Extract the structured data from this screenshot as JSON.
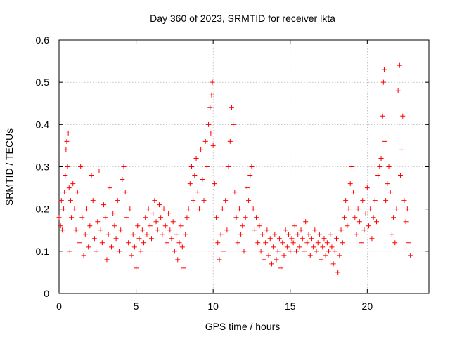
{
  "chart_data": {
    "type": "scatter",
    "title": "Day 360 of 2023, SRMTID for receiver lkta",
    "xlabel": "GPS time / hours",
    "ylabel": "SRMTID / TECUs",
    "xlim": [
      0,
      24
    ],
    "ylim": [
      0,
      0.6
    ],
    "xticks": [
      0,
      5,
      10,
      15,
      20
    ],
    "xtick_labels": [
      "0",
      "5",
      "10",
      "15",
      "20"
    ],
    "yticks": [
      0,
      0.1,
      0.2,
      0.3,
      0.4,
      0.5,
      0.6
    ],
    "ytick_labels": [
      "0",
      "0.1",
      "0.2",
      "0.3",
      "0.4",
      "0.5",
      "0.6"
    ],
    "grid": true,
    "marker": "+",
    "color": "#ff0000",
    "series": [
      {
        "name": "SRMTID",
        "x": [
          0.0,
          0.1,
          0.15,
          0.2,
          0.3,
          0.35,
          0.4,
          0.45,
          0.5,
          0.55,
          0.6,
          0.65,
          0.7,
          0.75,
          0.8,
          0.9,
          1.0,
          1.1,
          1.2,
          1.3,
          1.4,
          1.5,
          1.6,
          1.7,
          1.8,
          1.9,
          2.0,
          2.1,
          2.2,
          2.3,
          2.4,
          2.5,
          2.6,
          2.7,
          2.8,
          2.9,
          3.0,
          3.1,
          3.2,
          3.3,
          3.4,
          3.5,
          3.6,
          3.7,
          3.8,
          3.9,
          4.0,
          4.1,
          4.2,
          4.3,
          4.4,
          4.5,
          4.6,
          4.7,
          4.8,
          4.9,
          5.0,
          5.1,
          5.2,
          5.3,
          5.4,
          5.5,
          5.6,
          5.7,
          5.8,
          5.9,
          6.0,
          6.1,
          6.2,
          6.3,
          6.4,
          6.5,
          6.6,
          6.7,
          6.8,
          6.9,
          7.0,
          7.1,
          7.2,
          7.3,
          7.4,
          7.5,
          7.6,
          7.7,
          7.8,
          7.9,
          8.0,
          8.1,
          8.2,
          8.3,
          8.4,
          8.5,
          8.6,
          8.7,
          8.8,
          8.9,
          9.0,
          9.1,
          9.2,
          9.3,
          9.4,
          9.5,
          9.6,
          9.7,
          9.8,
          9.85,
          9.9,
          9.95,
          10.0,
          10.1,
          10.2,
          10.3,
          10.4,
          10.5,
          10.6,
          10.7,
          10.8,
          10.9,
          11.0,
          11.1,
          11.2,
          11.3,
          11.4,
          11.5,
          11.6,
          11.7,
          11.8,
          11.9,
          12.0,
          12.1,
          12.2,
          12.3,
          12.4,
          12.5,
          12.6,
          12.7,
          12.8,
          12.9,
          13.0,
          13.1,
          13.2,
          13.3,
          13.4,
          13.5,
          13.6,
          13.7,
          13.8,
          13.9,
          14.0,
          14.1,
          14.2,
          14.3,
          14.4,
          14.5,
          14.6,
          14.7,
          14.8,
          14.9,
          15.0,
          15.1,
          15.2,
          15.3,
          15.4,
          15.5,
          15.6,
          15.7,
          15.8,
          15.9,
          16.0,
          16.1,
          16.2,
          16.3,
          16.4,
          16.5,
          16.6,
          16.7,
          16.8,
          16.9,
          17.0,
          17.1,
          17.2,
          17.3,
          17.4,
          17.5,
          17.6,
          17.7,
          17.8,
          17.9,
          18.0,
          18.1,
          18.2,
          18.3,
          18.4,
          18.5,
          18.6,
          18.7,
          18.8,
          18.9,
          19.0,
          19.1,
          19.2,
          19.3,
          19.4,
          19.5,
          19.6,
          19.7,
          19.8,
          19.9,
          20.0,
          20.1,
          20.2,
          20.3,
          20.4,
          20.5,
          20.6,
          20.7,
          20.8,
          20.9,
          21.0,
          21.05,
          21.1,
          21.15,
          21.2,
          21.3,
          21.4,
          21.5,
          21.6,
          21.7,
          21.8,
          21.9,
          22.0,
          22.1,
          22.15,
          22.2,
          22.3,
          22.4,
          22.5,
          22.6,
          22.7,
          22.8
        ],
        "y": [
          0.18,
          0.16,
          0.22,
          0.15,
          0.2,
          0.24,
          0.28,
          0.34,
          0.36,
          0.3,
          0.38,
          0.25,
          0.1,
          0.22,
          0.18,
          0.26,
          0.2,
          0.15,
          0.24,
          0.12,
          0.3,
          0.18,
          0.09,
          0.14,
          0.2,
          0.11,
          0.16,
          0.28,
          0.22,
          0.13,
          0.1,
          0.17,
          0.29,
          0.15,
          0.12,
          0.21,
          0.18,
          0.08,
          0.14,
          0.25,
          0.11,
          0.19,
          0.16,
          0.13,
          0.22,
          0.1,
          0.15,
          0.27,
          0.3,
          0.24,
          0.18,
          0.12,
          0.2,
          0.09,
          0.14,
          0.11,
          0.06,
          0.16,
          0.13,
          0.1,
          0.15,
          0.12,
          0.18,
          0.14,
          0.2,
          0.16,
          0.13,
          0.19,
          0.22,
          0.17,
          0.15,
          0.21,
          0.18,
          0.14,
          0.2,
          0.16,
          0.12,
          0.19,
          0.15,
          0.13,
          0.17,
          0.1,
          0.14,
          0.08,
          0.12,
          0.16,
          0.11,
          0.06,
          0.14,
          0.18,
          0.2,
          0.26,
          0.3,
          0.22,
          0.28,
          0.32,
          0.24,
          0.2,
          0.34,
          0.27,
          0.22,
          0.36,
          0.3,
          0.4,
          0.44,
          0.38,
          0.47,
          0.5,
          0.35,
          0.26,
          0.18,
          0.12,
          0.08,
          0.14,
          0.2,
          0.1,
          0.22,
          0.15,
          0.3,
          0.36,
          0.44,
          0.4,
          0.24,
          0.18,
          0.12,
          0.2,
          0.14,
          0.16,
          0.1,
          0.18,
          0.25,
          0.22,
          0.28,
          0.3,
          0.2,
          0.15,
          0.18,
          0.12,
          0.16,
          0.1,
          0.14,
          0.08,
          0.12,
          0.15,
          0.09,
          0.13,
          0.07,
          0.11,
          0.14,
          0.08,
          0.1,
          0.13,
          0.06,
          0.12,
          0.09,
          0.15,
          0.11,
          0.14,
          0.1,
          0.13,
          0.12,
          0.16,
          0.1,
          0.14,
          0.11,
          0.15,
          0.13,
          0.1,
          0.17,
          0.12,
          0.14,
          0.09,
          0.13,
          0.11,
          0.15,
          0.1,
          0.12,
          0.14,
          0.08,
          0.11,
          0.13,
          0.09,
          0.12,
          0.1,
          0.14,
          0.11,
          0.07,
          0.1,
          0.13,
          0.05,
          0.09,
          0.15,
          0.12,
          0.18,
          0.22,
          0.16,
          0.2,
          0.26,
          0.3,
          0.24,
          0.18,
          0.14,
          0.2,
          0.17,
          0.12,
          0.22,
          0.15,
          0.19,
          0.25,
          0.16,
          0.2,
          0.13,
          0.18,
          0.22,
          0.17,
          0.28,
          0.3,
          0.32,
          0.42,
          0.5,
          0.53,
          0.36,
          0.22,
          0.26,
          0.3,
          0.24,
          0.14,
          0.18,
          0.12,
          0.2,
          0.48,
          0.54,
          0.28,
          0.34,
          0.42,
          0.22,
          0.17,
          0.2,
          0.12,
          0.09
        ]
      }
    ]
  }
}
